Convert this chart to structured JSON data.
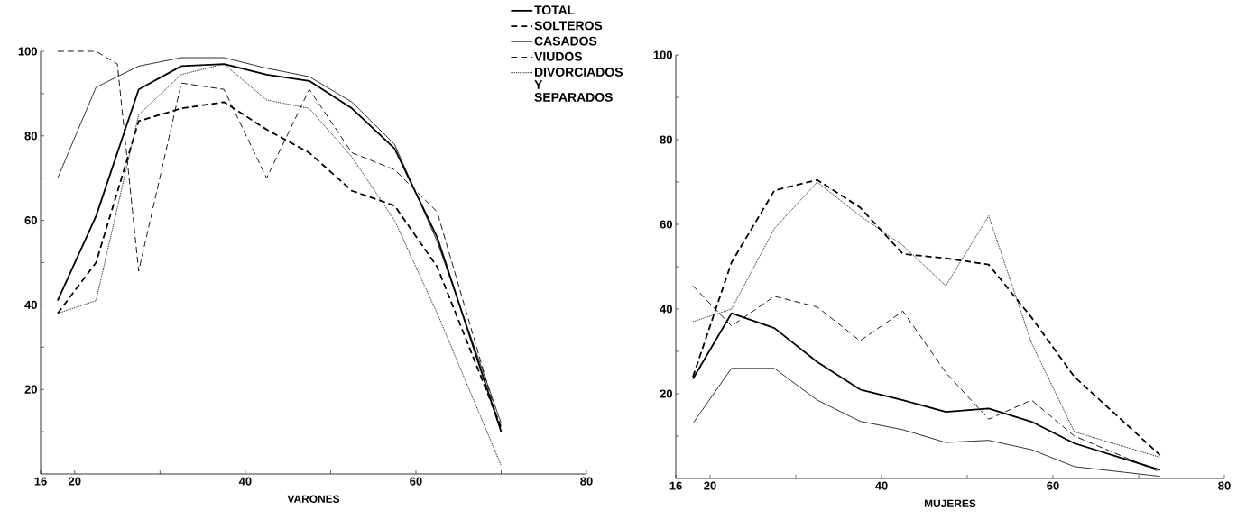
{
  "chart_data": [
    {
      "type": "line",
      "xlabel": "VARONES",
      "x": [
        18,
        22.5,
        27.5,
        32.5,
        37.5,
        42.5,
        47.5,
        52.5,
        57.5,
        62.5,
        70
      ],
      "xlim": [
        16,
        80
      ],
      "xticks": [
        16,
        20,
        {
          "value": 30,
          "label": null
        },
        40,
        {
          "value": 50,
          "label": null
        },
        60,
        {
          "value": 70,
          "label": null
        },
        80
      ],
      "ylim": [
        0,
        100
      ],
      "yticks": [
        {
          "value": 10,
          "label": null
        },
        20,
        {
          "value": 30,
          "label": null
        },
        40,
        {
          "value": 50,
          "label": null
        },
        60,
        {
          "value": 70,
          "label": null
        },
        80,
        {
          "value": 90,
          "label": null
        },
        100
      ],
      "grid": false,
      "legend": "top right",
      "marker": "none",
      "series": [
        {
          "name": "TOTAL",
          "color": "#000000",
          "line_style": "solid",
          "values": [
            41,
            61,
            91,
            96.5,
            97,
            94.5,
            93,
            86.5,
            77,
            56,
            10
          ]
        },
        {
          "name": "SOLTEROS",
          "color": "#000000",
          "line_style": "dashed",
          "values": [
            38,
            50,
            83.5,
            86.5,
            88,
            81.5,
            76,
            67,
            63.5,
            49,
            11
          ]
        },
        {
          "name": "CASADOS",
          "color": "#000000",
          "line_style": "solid",
          "values": [
            70,
            91.5,
            96.5,
            98.5,
            98.5,
            96,
            94,
            88,
            78,
            55,
            12
          ]
        },
        {
          "name": "VIUDOS",
          "color": "#000000",
          "line_style": "dashed",
          "x": [
            18,
            22.5,
            25,
            27.5,
            32.5,
            37.5,
            42.5,
            47.5,
            52.5,
            57.5,
            62.5,
            70
          ],
          "values": [
            100,
            100,
            97,
            48,
            92.5,
            91,
            70,
            91,
            76,
            72,
            62,
            10
          ]
        },
        {
          "name": "DIVORCIADOS Y SEPARADOS",
          "color": "#000000",
          "line_style": "dotted",
          "values": [
            38,
            41,
            85,
            94.5,
            97,
            88.5,
            86.5,
            75,
            60,
            38,
            2
          ]
        }
      ]
    },
    {
      "type": "line",
      "xlabel": "MUJERES",
      "x": [
        18,
        22.5,
        27.5,
        32.5,
        37.5,
        42.5,
        47.5,
        52.5,
        57.5,
        62.5,
        72.5
      ],
      "xlim": [
        16,
        80
      ],
      "xticks": [
        16,
        20,
        {
          "value": 30,
          "label": null
        },
        40,
        {
          "value": 50,
          "label": null
        },
        60,
        {
          "value": 70,
          "label": null
        },
        80
      ],
      "ylim": [
        0,
        100
      ],
      "yticks": [
        {
          "value": 10,
          "label": null
        },
        20,
        {
          "value": 30,
          "label": null
        },
        40,
        {
          "value": 50,
          "label": null
        },
        60,
        {
          "value": 70,
          "label": null
        },
        80,
        {
          "value": 90,
          "label": null
        },
        100
      ],
      "grid": false,
      "marker": "none",
      "series": [
        {
          "color": "#000000",
          "line_style": "solid",
          "values": [
            23.5,
            39,
            35.5,
            27.5,
            21,
            18.5,
            15.7,
            16.5,
            13.4,
            8.3,
            2
          ]
        },
        {
          "color": "#000000",
          "line_style": "dashed",
          "values": [
            24,
            51,
            68,
            70.5,
            64,
            53,
            52,
            50.5,
            38,
            24,
            5.5
          ]
        },
        {
          "color": "#000000",
          "line_style": "solid",
          "values": [
            13,
            26,
            26,
            18.5,
            13.5,
            11.5,
            8.5,
            9,
            6.8,
            2.8,
            0.5
          ]
        },
        {
          "color": "#000000",
          "line_style": "dashed",
          "values": [
            45.5,
            36,
            43,
            40.5,
            32.5,
            39.5,
            25,
            14,
            18.5,
            10,
            1.5
          ]
        },
        {
          "color": "#000000",
          "line_style": "dotted",
          "values": [
            37,
            40,
            59,
            70,
            62,
            55,
            45.5,
            62,
            32,
            11,
            5
          ]
        }
      ]
    }
  ]
}
